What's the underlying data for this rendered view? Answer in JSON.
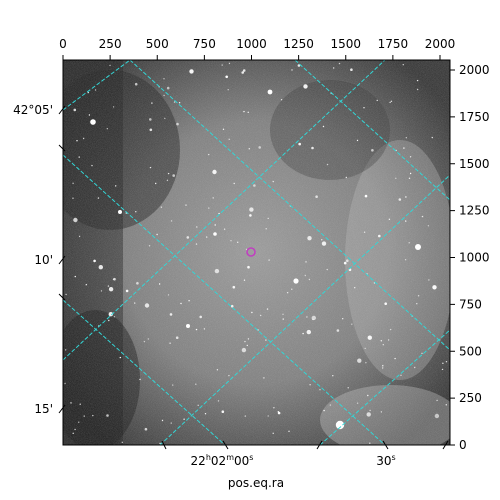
{
  "figure": {
    "x_axis_title": "pos.eq.ra",
    "top_ticks": [
      "0",
      "250",
      "500",
      "750",
      "1000",
      "1250",
      "1500",
      "1750",
      "2000"
    ],
    "right_ticks": [
      "0",
      "250",
      "500",
      "750",
      "1000",
      "1250",
      "1500",
      "1750",
      "2000"
    ],
    "left_ticks": [
      "42°05'",
      "10'",
      "15'"
    ],
    "bottom_ticks": {
      "ra1_h": "22",
      "ra1_hsup": "h",
      "ra1_m": "02",
      "ra1_msup": "m",
      "ra1_s": "00",
      "ra1_ssup": "s",
      "ra2_s": "30",
      "ra2_ssup": "s"
    },
    "colors": {
      "grid": "#33d6d6",
      "marker": "#c040c0",
      "frame": "#000000"
    },
    "marker_icon": "target-circle-icon"
  }
}
